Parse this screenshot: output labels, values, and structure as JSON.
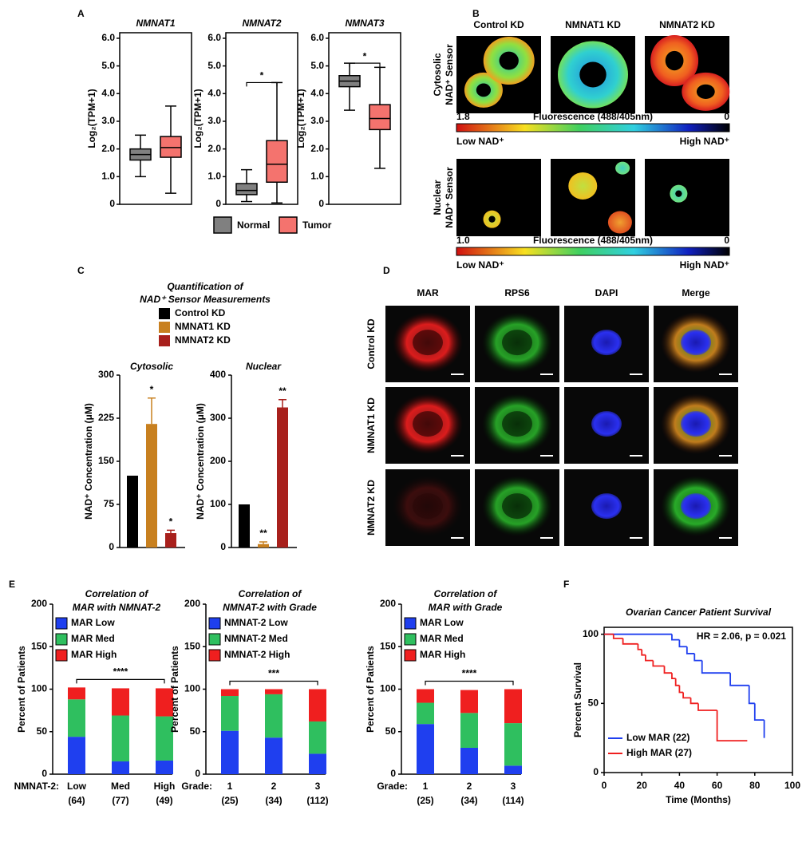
{
  "panel_labels": [
    "A",
    "B",
    "C",
    "D",
    "E",
    "F"
  ],
  "chart_data": [
    {
      "type": "box",
      "titles": [
        "NMNAT1",
        "NMNAT2",
        "NMNAT3"
      ],
      "ylabel": "Log₂(TPM+1)",
      "ylim": [
        0,
        6.2
      ],
      "yticks": [
        0,
        {
          "value": 1,
          "label": "1.0"
        },
        {
          "value": 2,
          "label": "2.0"
        },
        {
          "value": 3,
          "label": "3.0"
        },
        {
          "value": 4,
          "label": "4.0"
        },
        {
          "value": 5,
          "label": "5.0"
        },
        {
          "value": 6,
          "label": "6.0"
        }
      ],
      "significance": [
        null,
        "*",
        "*"
      ],
      "series": [
        {
          "name": "Normal",
          "color": "#808080",
          "values": [
            {
              "min": 1.0,
              "q1": 1.6,
              "median": 1.8,
              "q3": 2.0,
              "max": 2.5
            },
            {
              "min": 0.1,
              "q1": 0.35,
              "median": 0.5,
              "q3": 0.75,
              "max": 1.25
            },
            {
              "min": 3.4,
              "q1": 4.25,
              "median": 4.45,
              "q3": 4.65,
              "max": 5.1
            }
          ]
        },
        {
          "name": "Tumor",
          "color": "#f4736e",
          "values": [
            {
              "min": 0.4,
              "q1": 1.7,
              "median": 2.05,
              "q3": 2.45,
              "max": 3.55
            },
            {
              "min": 0.05,
              "q1": 0.8,
              "median": 1.45,
              "q3": 2.3,
              "max": 4.4
            },
            {
              "min": 1.3,
              "q1": 2.7,
              "median": 3.1,
              "q3": 3.6,
              "max": 4.95
            }
          ]
        }
      ]
    },
    {
      "type": "bar_error",
      "title": [
        "Quantification of",
        "NAD⁺ Sensor Measurements"
      ],
      "ylabel": "NAD⁺ Concentration (μM)",
      "series": [
        {
          "name": "Control KD",
          "color": "#000000"
        },
        {
          "name": "NMNAT1 KD",
          "color": "#c8801f"
        },
        {
          "name": "NMNAT2 KD",
          "color": "#a8201c"
        }
      ],
      "panels": [
        {
          "title": "Cytosolic",
          "values": [
            125,
            215,
            25
          ],
          "errors": [
            null,
            45,
            5
          ],
          "annotations": [
            null,
            "*",
            "*"
          ],
          "ylim": [
            0,
            300
          ],
          "yticks": [
            0,
            75,
            150,
            225,
            300
          ]
        },
        {
          "title": "Nuclear",
          "values": [
            100,
            8,
            325
          ],
          "errors": [
            null,
            5,
            18
          ],
          "annotations": [
            null,
            "**",
            "**"
          ],
          "ylim": [
            0,
            400
          ],
          "yticks": [
            0,
            100,
            200,
            300,
            400
          ]
        }
      ]
    },
    {
      "type": "stacked_bar",
      "title": [
        "Correlation of",
        "MAR with NMNAT-2"
      ],
      "ylabel": "Percent of Patients",
      "ylim": [
        0,
        200
      ],
      "yticks": [
        0,
        50,
        100,
        150,
        200
      ],
      "xprefix": "NMNAT-2:",
      "categories": [
        "Low",
        "Med",
        "High"
      ],
      "counts": [
        "(64)",
        "(77)",
        "(49)"
      ],
      "significance": "****",
      "series": [
        {
          "name": "MAR Low",
          "color": "#1f3fef",
          "values": [
            44,
            15,
            16
          ]
        },
        {
          "name": "MAR Med",
          "color": "#2fbf5f",
          "values": [
            44,
            54,
            52
          ]
        },
        {
          "name": "MAR High",
          "color": "#ef1f1f",
          "values": [
            14,
            32,
            33
          ]
        }
      ]
    },
    {
      "type": "stacked_bar",
      "title": [
        "Correlation of",
        "NMNAT-2 with Grade"
      ],
      "ylabel": "Percent of Patients",
      "ylim": [
        0,
        200
      ],
      "yticks": [
        0,
        50,
        100,
        150,
        200
      ],
      "xprefix": "Grade:",
      "categories": [
        "1",
        "2",
        "3"
      ],
      "counts": [
        "(25)",
        "(34)",
        "(112)"
      ],
      "significance": "***",
      "series": [
        {
          "name": "NMNAT-2 Low",
          "color": "#1f3fef",
          "values": [
            51,
            43,
            24
          ]
        },
        {
          "name": "NMNAT-2 Med",
          "color": "#2fbf5f",
          "values": [
            41,
            51,
            38
          ]
        },
        {
          "name": "NMNAT-2 High",
          "color": "#ef1f1f",
          "values": [
            8,
            6,
            38
          ]
        }
      ]
    },
    {
      "type": "stacked_bar",
      "title": [
        "Correlation of",
        "MAR with Grade"
      ],
      "ylabel": "Percent of Patients",
      "ylim": [
        0,
        200
      ],
      "yticks": [
        0,
        50,
        100,
        150,
        200
      ],
      "xprefix": "Grade:",
      "categories": [
        "1",
        "2",
        "3"
      ],
      "counts": [
        "(25)",
        "(34)",
        "(114)"
      ],
      "significance": "****",
      "series": [
        {
          "name": "MAR Low",
          "color": "#1f3fef",
          "values": [
            59,
            31,
            10
          ]
        },
        {
          "name": "MAR Med",
          "color": "#2fbf5f",
          "values": [
            25,
            41,
            50
          ]
        },
        {
          "name": "MAR High",
          "color": "#ef1f1f",
          "values": [
            16,
            27,
            40
          ]
        }
      ]
    },
    {
      "type": "survival",
      "title": "Ovarian Cancer Patient Survival",
      "annotation": "HR = 2.06, p = 0.021",
      "xlabel": "Time (Months)",
      "ylabel": "Percent Survival",
      "xlim": [
        0,
        100
      ],
      "xticks": [
        0,
        20,
        40,
        60,
        80,
        100
      ],
      "ylim": [
        0,
        105
      ],
      "yticks": [
        0,
        50,
        100
      ],
      "series": [
        {
          "name": "Low MAR (22)",
          "color": "#1f3fef",
          "x": [
            0,
            36,
            40,
            44,
            48,
            52,
            67,
            77,
            80,
            85
          ],
          "values": [
            100,
            96,
            91,
            86,
            81,
            72,
            63,
            50,
            38,
            25
          ]
        },
        {
          "name": "High MAR (27)",
          "color": "#ef1f1f",
          "x": [
            0,
            5,
            10,
            18,
            20,
            22,
            26,
            32,
            36,
            38,
            40,
            42,
            46,
            50,
            60,
            76
          ],
          "values": [
            100,
            97,
            93,
            89,
            85,
            81,
            77,
            72,
            68,
            63,
            58,
            54,
            50,
            45,
            23,
            23
          ]
        }
      ]
    }
  ],
  "panel_b": {
    "columns": [
      "Control KD",
      "NMNAT1 KD",
      "NMNAT2 KD"
    ],
    "rows": [
      {
        "label": [
          "Cytosolic",
          "NAD⁺ Sensor"
        ],
        "scale_max": "1.8",
        "scale_min": "0",
        "scale_title": "Fluorescence (488/405nm)",
        "low": "Low NAD⁺",
        "high": "High NAD⁺"
      },
      {
        "label": [
          "Nuclear",
          "NAD⁺ Sensor"
        ],
        "scale_max": "1.0",
        "scale_min": "0",
        "scale_title": "Fluorescence (488/405nm)",
        "low": "Low NAD⁺",
        "high": "High NAD⁺"
      }
    ]
  },
  "panel_d": {
    "columns": [
      "MAR",
      "RPS6",
      "DAPI",
      "Merge"
    ],
    "rows": [
      "Control KD",
      "NMNAT1 KD",
      "NMNAT2 KD"
    ]
  }
}
